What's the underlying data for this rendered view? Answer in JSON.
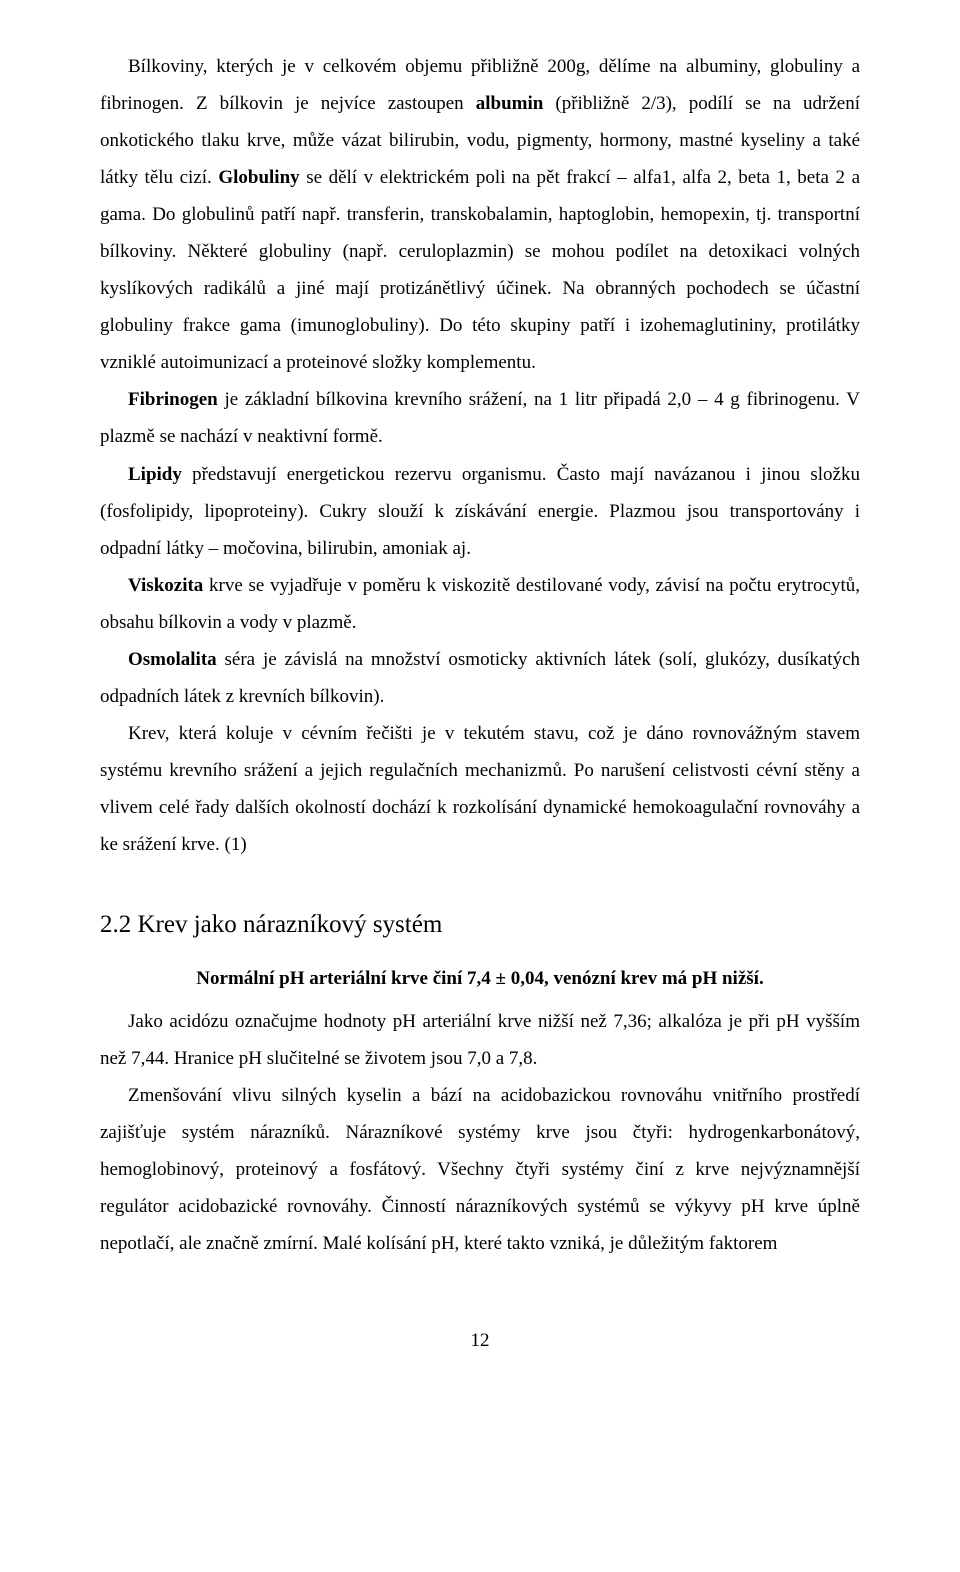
{
  "p1a": "Bílkoviny, kterých je v celkovém objemu přibližně 200g, dělíme na albuminy, globuliny a fibrinogen. Z bílkovin je nejvíce zastoupen ",
  "p1b": "albumin",
  "p1c": " (přibližně 2/3), podílí se na udržení onkotického tlaku krve, může vázat bilirubin, vodu, pigmenty, hormony, mastné kyseliny a také látky tělu cizí. ",
  "p1d": "Globuliny",
  "p1e": " se dělí v elektrickém poli na pět frakcí – alfa1, alfa 2, beta 1, beta 2 a gama. Do globulinů patří např. transferin, transkobalamin, haptoglobin, hemopexin, tj. transportní bílkoviny. Některé globuliny (např. ceruloplazmin) se mohou podílet na detoxikaci volných kyslíkových radikálů a jiné mají protizánětlivý účinek. Na obranných pochodech se účastní globuliny frakce gama (imunoglobuliny). Do této skupiny patří i izohemaglutininy, protilátky vzniklé autoimunizací a proteinové složky komplementu.",
  "p2a": "Fibrinogen",
  "p2b": " je základní bílkovina krevního srážení, na 1 litr připadá 2,0 – 4 g fibrinogenu. V plazmě se nachází v neaktivní formě.",
  "p3a": "Lipidy",
  "p3b": " představují energetickou rezervu organismu. Často mají navázanou i jinou složku (fosfolipidy, lipoproteiny). Cukry slouží k získávání energie. Plazmou jsou transportovány i odpadní látky – močovina, bilirubin, amoniak aj.",
  "p4a": "Viskozita",
  "p4b": " krve se vyjadřuje v poměru k viskozitě destilované vody, závisí na počtu erytrocytů, obsahu bílkovin a vody v plazmě.",
  "p5a": "Osmolalita",
  "p5b": " séra je závislá na množství osmoticky aktivních látek (solí, glukózy, dusíkatých odpadních látek z krevních bílkovin).",
  "p6": "Krev, která koluje v cévním řečišti je v tekutém stavu, což je dáno rovnovážným stavem systému krevního srážení a jejich regulačních mechanizmů. Po narušení celistvosti cévní stěny a vlivem celé řady dalších okolností dochází k rozkolísání dynamické hemokoagulační rovnováhy a ke srážení krve. (1)",
  "heading": "2.2  Krev jako nárazníkový systém",
  "bold_line": "Normální pH arteriální krve činí 7,4 ± 0,04, venózní krev má pH nižší.",
  "p7": "Jako acidózu označujme hodnoty pH arteriální krve nižší než 7,36; alkalóza je při pH vyšším než 7,44. Hranice pH slučitelné se životem jsou 7,0 a 7,8.",
  "p8": "Zmenšování vlivu silných kyselin a bází na acidobazickou rovnováhu vnitřního prostředí zajišťuje systém nárazníků. Nárazníkové systémy krve jsou čtyři: hydrogenkarbonátový, hemoglobinový, proteinový a fosfátový. Všechny čtyři systémy činí z krve nejvýznamnější regulátor acidobazické rovnováhy. Činností nárazníkových systémů se výkyvy pH krve úplně nepotlačí, ale značně zmírní. Malé kolísání pH, které takto vzniká, je důležitým faktorem",
  "page_number": "12"
}
